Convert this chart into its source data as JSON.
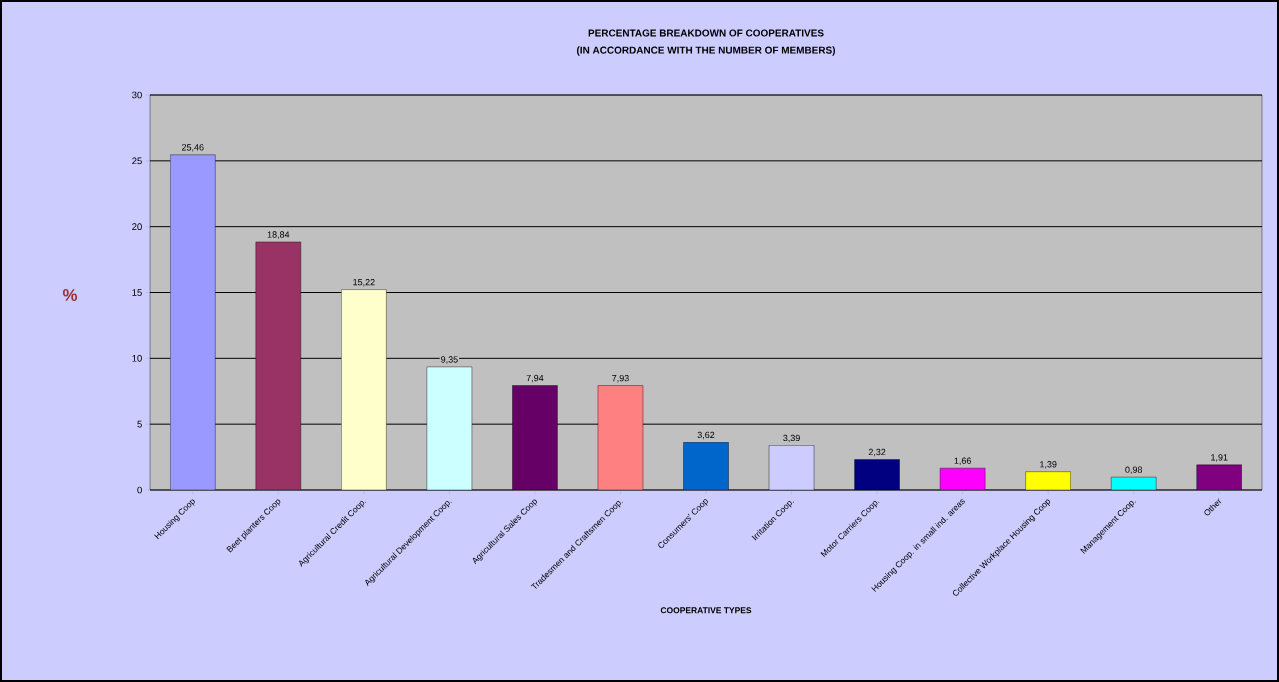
{
  "chart_data": {
    "type": "bar",
    "title": "PERCENTAGE BREAKDOWN OF COOPERATIVES",
    "subtitle": "(IN ACCORDANCE WITH THE NUMBER OF MEMBERS)",
    "xlabel": "COOPERATIVE TYPES",
    "ylabel": "%",
    "categories": [
      "Housing Coop",
      "Beet planters Coop",
      "Agricultural Credit Coop.",
      "Agricultural Development Coop.",
      "Agricultural Sales Coop",
      "Tradesmen and Craftsmen Coop.",
      "Consumers' Coop",
      "Irritation Coop.",
      "Motor Carriers Coop.",
      "Housing Coop. in small ind. areas",
      "Collective Workplace Housing Coop",
      "Management Coop.",
      "Other"
    ],
    "values": [
      25.46,
      18.84,
      15.22,
      9.35,
      7.94,
      7.93,
      3.62,
      3.39,
      2.32,
      1.66,
      1.39,
      0.98,
      1.91
    ],
    "value_labels": [
      "25,46",
      "18,84",
      "15,22",
      "9,35",
      "7,94",
      "7,93",
      "3,62",
      "3,39",
      "2,32",
      "1,66",
      "1,39",
      "0,98",
      "1,91"
    ],
    "colors": [
      "#9999ff",
      "#993366",
      "#ffffcc",
      "#ccffff",
      "#660066",
      "#ff8080",
      "#0066cc",
      "#ccccff",
      "#000080",
      "#ff00ff",
      "#ffff00",
      "#00ffff",
      "#800080"
    ],
    "ylim": [
      0,
      30
    ],
    "yticks": [
      0,
      5,
      10,
      15,
      20,
      25,
      30
    ],
    "grid": "y"
  }
}
